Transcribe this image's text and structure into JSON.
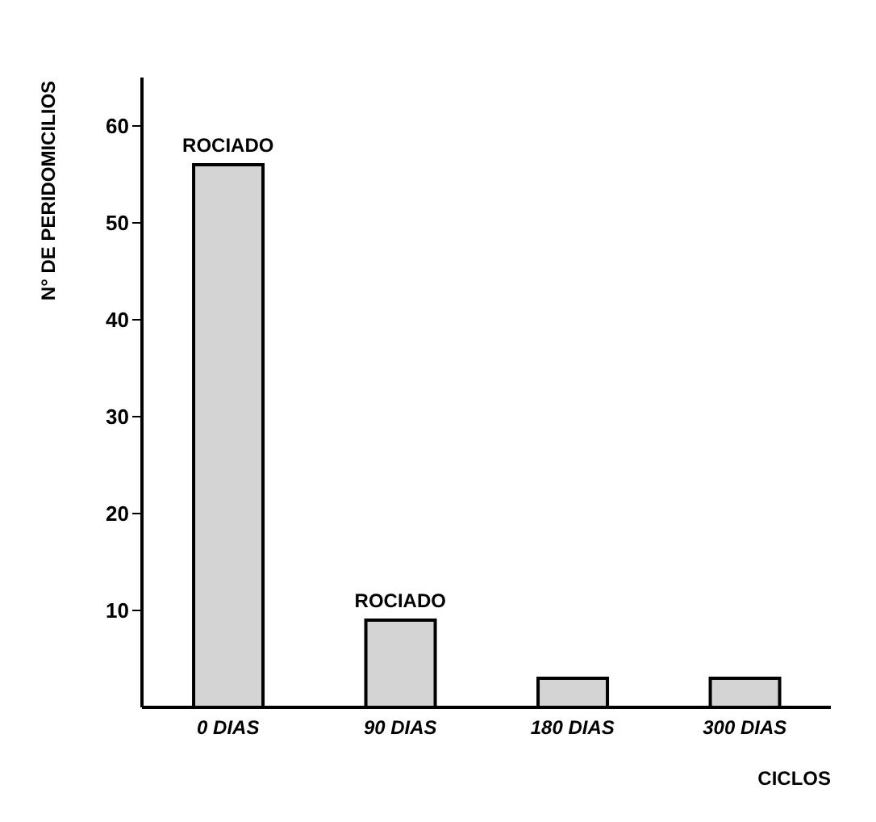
{
  "chart_data": {
    "type": "bar",
    "ylabel": "N° DE PERIDOMICILIOS",
    "xlabel": "CICLOS",
    "categories": [
      "0 DIAS",
      "90 DIAS",
      "180 DIAS",
      "300 DIAS"
    ],
    "values": [
      56,
      9,
      3,
      3
    ],
    "color": "#d4d4d4",
    "ylim": [
      0,
      65
    ],
    "yticks": [
      10,
      20,
      30,
      40,
      50,
      60
    ],
    "grid": false,
    "legend": false,
    "annotations": [
      {
        "text": "ROCIADO",
        "x": "0 DIAS",
        "y": 56
      },
      {
        "text": "ROCIADO",
        "x": "90 DIAS",
        "y": 9
      }
    ]
  }
}
